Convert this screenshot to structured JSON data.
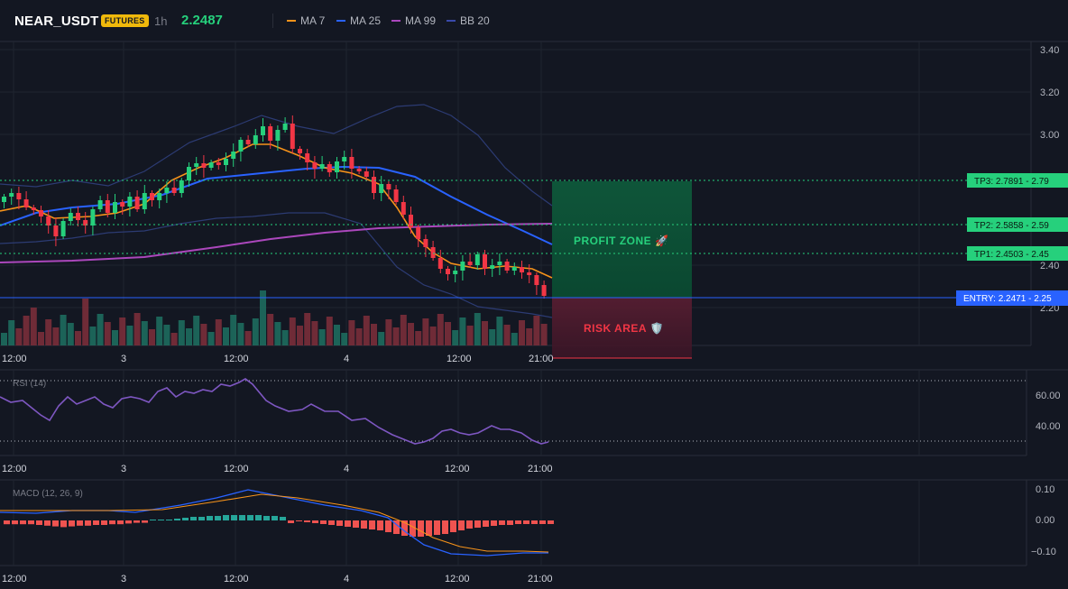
{
  "header": {
    "symbol": "NEAR_USDT",
    "market_badge": "FUTURES",
    "timeframe": "1h",
    "last_price": "2.2487",
    "indicators": [
      {
        "label": "MA 7",
        "color": "#f7931a"
      },
      {
        "label": "MA 25",
        "color": "#2962ff"
      },
      {
        "label": "MA 99",
        "color": "#ab47bc"
      },
      {
        "label": "BB 20",
        "color": "#3949ab"
      }
    ]
  },
  "colors": {
    "background": "#131722",
    "up": "#26d07c",
    "down": "#f23645",
    "volume_up": "#1e6b5e",
    "volume_down": "#7a2d3a",
    "ma7": "#f7931a",
    "ma25": "#2962ff",
    "ma99": "#ab47bc",
    "bb": "#2c3b73",
    "entry": "#2962ff",
    "tp": "#26d07c",
    "rsi": "#7e57c2",
    "macd": "#2962ff",
    "signal": "#f7931a",
    "hist_pos": "#26a69a",
    "hist_neg": "#ef5350"
  },
  "main_chart": {
    "y_axis_ticks": [
      "3.40",
      "3.20",
      "3.00",
      "2.40",
      "2.20"
    ],
    "time_labels": [
      "12:00",
      "3",
      "12:00",
      "4",
      "12:00",
      "21:00"
    ],
    "levels": [
      {
        "label": "TP3: 2.7891 - 2.79",
        "kind": "tp"
      },
      {
        "label": "TP2: 2.5858 - 2.59",
        "kind": "tp"
      },
      {
        "label": "TP1: 2.4503 - 2.45",
        "kind": "tp"
      },
      {
        "label": "ENTRY: 2.2471 - 2.25",
        "kind": "entry"
      }
    ],
    "profit_zone_label": "PROFIT ZONE 🚀",
    "risk_area_label": "RISK AREA 🛡️"
  },
  "rsi_panel": {
    "title": "RSI (14)",
    "y_axis_ticks": [
      "60.00",
      "40.00"
    ],
    "time_labels": [
      "12:00",
      "3",
      "12:00",
      "4",
      "12:00",
      "21:00"
    ]
  },
  "macd_panel": {
    "title": "MACD (12, 26, 9)",
    "y_axis_ticks": [
      "0.10",
      "0.00",
      "−0.10"
    ],
    "time_labels": [
      "12:00",
      "3",
      "12:00",
      "4",
      "12:00",
      "21:00"
    ]
  }
}
